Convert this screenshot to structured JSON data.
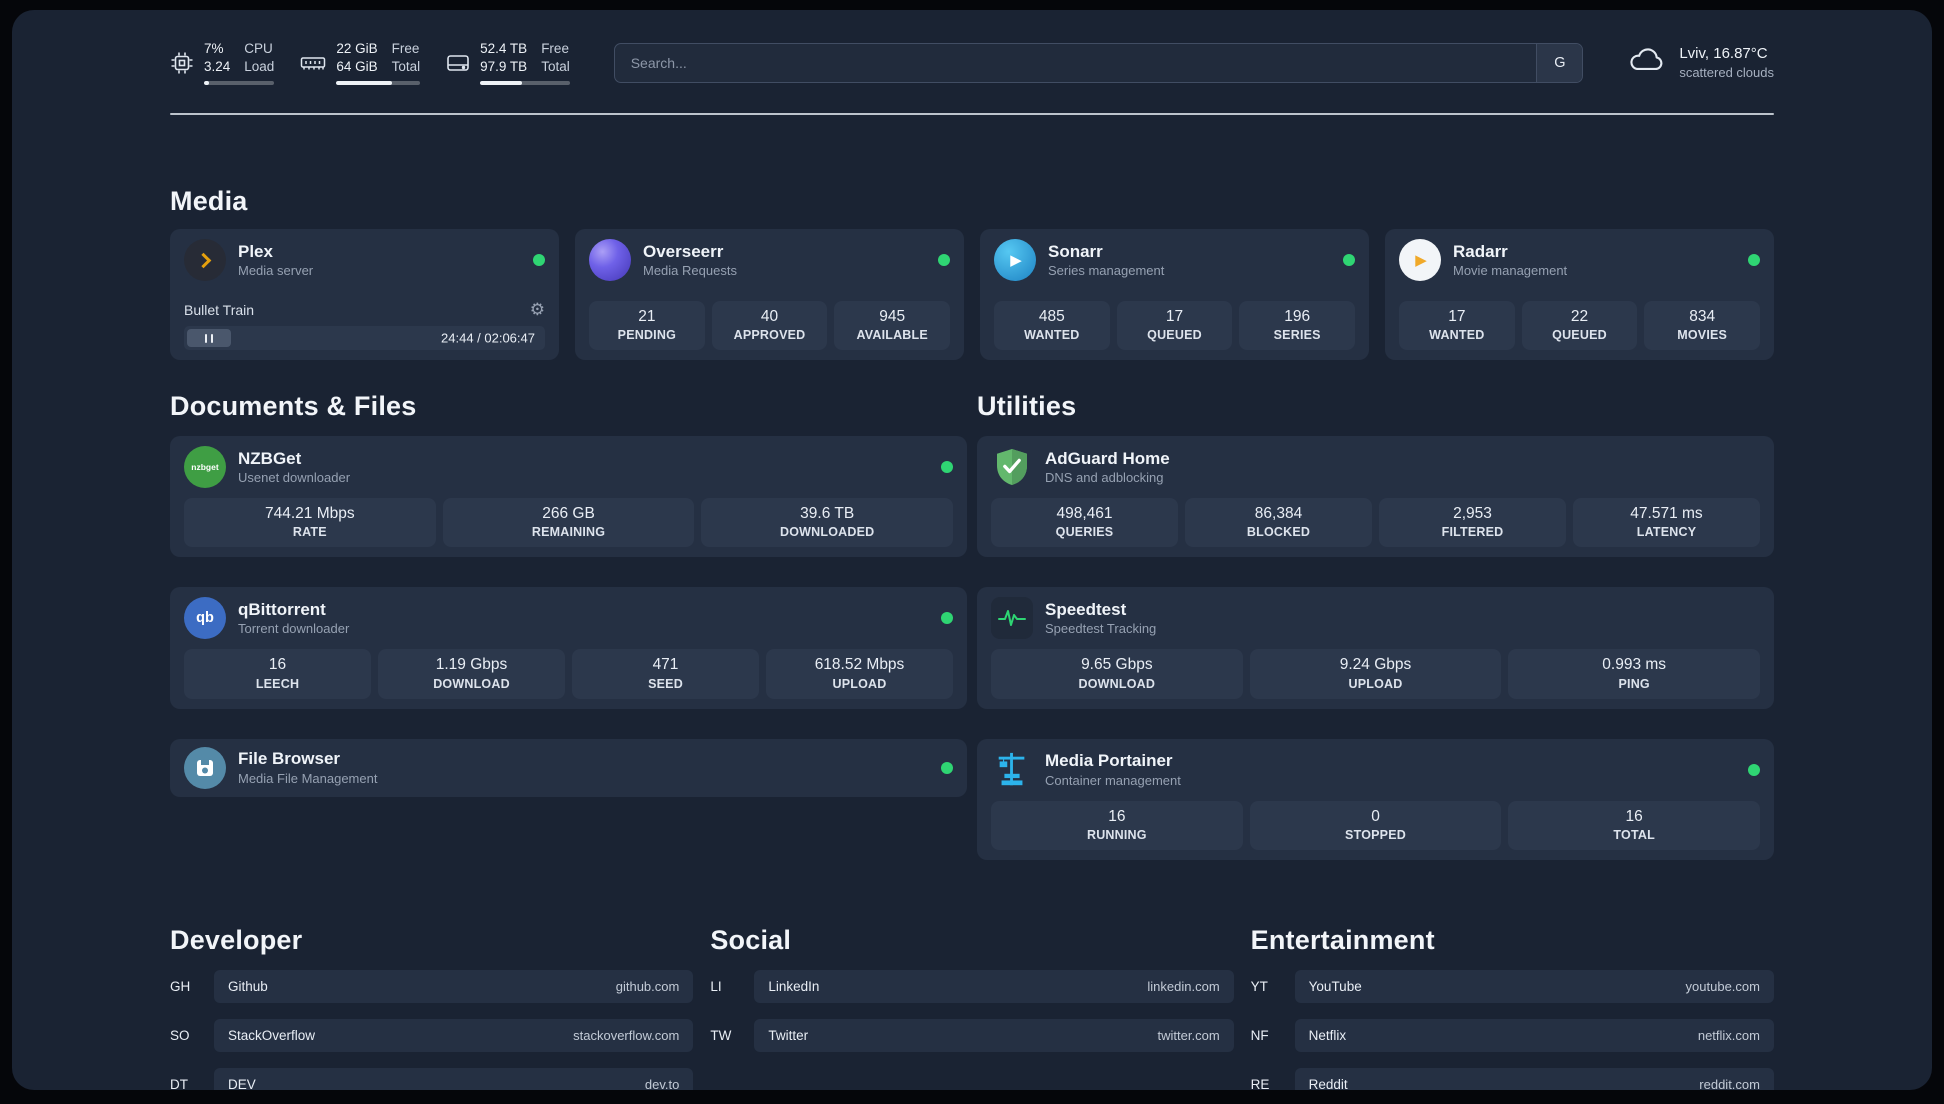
{
  "theme": {
    "panel_bg": "#1a2333",
    "card_bg": "#253043",
    "tile_bg": "#2c384c",
    "text_primary": "#eef2f7",
    "text_secondary": "#96a1b2",
    "status_online": "#2fd573",
    "plex_accent": "#e5a00d",
    "overseerr_accent": "#6f61e8",
    "sonarr_accent": "#2aa3db",
    "radarr_accent": "#f0a929",
    "nzbget_accent": "#3f9e44",
    "qbittorrent_accent": "#3c6cc3",
    "filebrowser_accent": "#548aa8",
    "adguard_accent": "#63b86d",
    "speedtest_accent": "#2ed573",
    "portainer_accent": "#2cb3eb"
  },
  "topbar": {
    "cpu": {
      "value_top": "7%",
      "value_bottom": "3.24",
      "label_top": "CPU",
      "label_bottom": "Load",
      "usage_percent": 7
    },
    "ram": {
      "value_top": "22 GiB",
      "value_bottom": "64 GiB",
      "label_top": "Free",
      "label_bottom": "Total",
      "usage_percent": 66
    },
    "disk": {
      "value_top": "52.4 TB",
      "value_bottom": "97.9 TB",
      "label_top": "Free",
      "label_bottom": "Total",
      "usage_percent": 47
    },
    "search": {
      "placeholder": "Search...",
      "engine_label": "G"
    },
    "weather": {
      "location": "Lviv, 16.87°C",
      "condition": "scattered clouds"
    }
  },
  "sections": {
    "media": "Media",
    "documents": "Documents & Files",
    "utilities": "Utilities",
    "developer": "Developer",
    "social": "Social",
    "entertainment": "Entertainment"
  },
  "icons": {
    "gear": "⚙",
    "sonarr_play": "▶",
    "radarr_play": "▶",
    "qbittorrent_glyph": "qb",
    "nzbget_glyph": "nzbget"
  },
  "services": {
    "plex": {
      "name": "Plex",
      "subtitle": "Media server",
      "status": "online",
      "now_playing": "Bullet Train",
      "time": "24:44 / 02:06:47"
    },
    "overseerr": {
      "name": "Overseerr",
      "subtitle": "Media Requests",
      "status": "online",
      "stats": [
        {
          "value": "21",
          "label": "PENDING"
        },
        {
          "value": "40",
          "label": "APPROVED"
        },
        {
          "value": "945",
          "label": "AVAILABLE"
        }
      ]
    },
    "sonarr": {
      "name": "Sonarr",
      "subtitle": "Series management",
      "status": "online",
      "stats": [
        {
          "value": "485",
          "label": "WANTED"
        },
        {
          "value": "17",
          "label": "QUEUED"
        },
        {
          "value": "196",
          "label": "SERIES"
        }
      ]
    },
    "radarr": {
      "name": "Radarr",
      "subtitle": "Movie management",
      "status": "online",
      "stats": [
        {
          "value": "17",
          "label": "WANTED"
        },
        {
          "value": "22",
          "label": "QUEUED"
        },
        {
          "value": "834",
          "label": "MOVIES"
        }
      ]
    },
    "nzbget": {
      "name": "NZBGet",
      "subtitle": "Usenet downloader",
      "status": "online",
      "stats": [
        {
          "value": "744.21 Mbps",
          "label": "RATE"
        },
        {
          "value": "266 GB",
          "label": "REMAINING"
        },
        {
          "value": "39.6 TB",
          "label": "DOWNLOADED"
        }
      ]
    },
    "qbittorrent": {
      "name": "qBittorrent",
      "subtitle": "Torrent downloader",
      "status": "online",
      "stats": [
        {
          "value": "16",
          "label": "LEECH"
        },
        {
          "value": "1.19 Gbps",
          "label": "DOWNLOAD"
        },
        {
          "value": "471",
          "label": "SEED"
        },
        {
          "value": "618.52 Mbps",
          "label": "UPLOAD"
        }
      ]
    },
    "filebrowser": {
      "name": "File Browser",
      "subtitle": "Media File Management",
      "status": "online"
    },
    "adguard": {
      "name": "AdGuard Home",
      "subtitle": "DNS and adblocking",
      "stats": [
        {
          "value": "498,461",
          "label": "QUERIES"
        },
        {
          "value": "86,384",
          "label": "BLOCKED"
        },
        {
          "value": "2,953",
          "label": "FILTERED"
        },
        {
          "value": "47.571 ms",
          "label": "LATENCY"
        }
      ]
    },
    "speedtest": {
      "name": "Speedtest",
      "subtitle": "Speedtest Tracking",
      "stats": [
        {
          "value": "9.65 Gbps",
          "label": "DOWNLOAD"
        },
        {
          "value": "9.24 Gbps",
          "label": "UPLOAD"
        },
        {
          "value": "0.993 ms",
          "label": "PING"
        }
      ]
    },
    "portainer": {
      "name": "Media Portainer",
      "subtitle": "Container management",
      "status": "online",
      "stats": [
        {
          "value": "16",
          "label": "RUNNING"
        },
        {
          "value": "0",
          "label": "STOPPED"
        },
        {
          "value": "16",
          "label": "TOTAL"
        }
      ]
    }
  },
  "bookmarks": {
    "developer": [
      {
        "abbr": "GH",
        "name": "Github",
        "url": "github.com"
      },
      {
        "abbr": "SO",
        "name": "StackOverflow",
        "url": "stackoverflow.com"
      },
      {
        "abbr": "DT",
        "name": "DEV",
        "url": "dev.to"
      }
    ],
    "social": [
      {
        "abbr": "LI",
        "name": "LinkedIn",
        "url": "linkedin.com"
      },
      {
        "abbr": "TW",
        "name": "Twitter",
        "url": "twitter.com"
      }
    ],
    "entertainment": [
      {
        "abbr": "YT",
        "name": "YouTube",
        "url": "youtube.com"
      },
      {
        "abbr": "NF",
        "name": "Netflix",
        "url": "netflix.com"
      },
      {
        "abbr": "RE",
        "name": "Reddit",
        "url": "reddit.com"
      }
    ]
  }
}
